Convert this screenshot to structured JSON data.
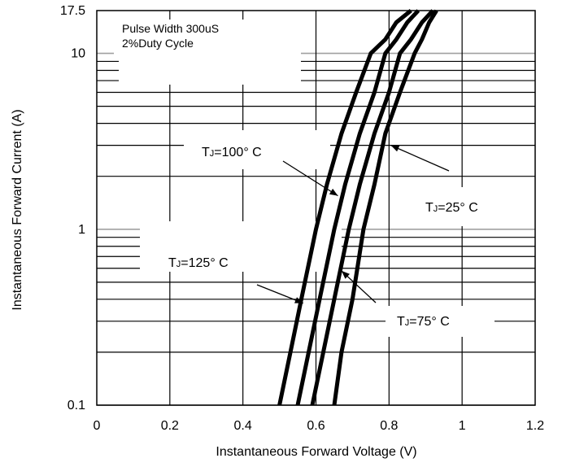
{
  "chart_data": {
    "type": "line",
    "xlabel": "Instantaneous Forward Voltage (V)",
    "ylabel": "Instantaneous Forward Current (A)",
    "x_ticks": [
      "0",
      "0.2",
      "0.4",
      "0.6",
      "0.8",
      "1",
      "1.2"
    ],
    "y_ticks": [
      "0.1",
      "1",
      "10",
      "17.5"
    ],
    "xlim": [
      0,
      1.2
    ],
    "ylim": [
      0.1,
      17.5
    ],
    "y_scale": "log",
    "grid": true,
    "note_lines": [
      "Pulse Width 300uS",
      "2%Duty Cycle"
    ],
    "series": [
      {
        "name": "TJ=125°C",
        "x": [
          0.5,
          0.53,
          0.56,
          0.6,
          0.63,
          0.67,
          0.71,
          0.75,
          0.79,
          0.82,
          0.86
        ],
        "y": [
          0.1,
          0.2,
          0.4,
          1.0,
          1.8,
          3.5,
          6.0,
          10.0,
          12.0,
          15.0,
          17.5
        ]
      },
      {
        "name": "TJ=100°C",
        "x": [
          0.55,
          0.58,
          0.61,
          0.65,
          0.68,
          0.72,
          0.76,
          0.79,
          0.82,
          0.85,
          0.88
        ],
        "y": [
          0.1,
          0.2,
          0.4,
          1.0,
          1.8,
          3.5,
          6.0,
          10.0,
          12.0,
          15.0,
          17.5
        ]
      },
      {
        "name": "TJ=75°C",
        "x": [
          0.59,
          0.62,
          0.65,
          0.69,
          0.72,
          0.76,
          0.8,
          0.83,
          0.86,
          0.89,
          0.92
        ],
        "y": [
          0.1,
          0.2,
          0.4,
          1.0,
          1.8,
          3.5,
          6.0,
          10.0,
          12.0,
          15.0,
          17.5
        ]
      },
      {
        "name": "TJ=25°C",
        "x": [
          0.65,
          0.67,
          0.7,
          0.73,
          0.76,
          0.79,
          0.83,
          0.87,
          0.89,
          0.91,
          0.93
        ],
        "y": [
          0.1,
          0.2,
          0.4,
          1.0,
          1.8,
          3.5,
          6.0,
          10.0,
          12.0,
          15.0,
          17.5
        ]
      }
    ],
    "annotations": [
      {
        "main": "T",
        "sub": "J",
        "rest": "=100° C",
        "series": "TJ=100°C"
      },
      {
        "main": "T",
        "sub": "J",
        "rest": "=25° C",
        "series": "TJ=25°C"
      },
      {
        "main": "T",
        "sub": "J",
        "rest": "=125° C",
        "series": "TJ=125°C"
      },
      {
        "main": "T",
        "sub": "J",
        "rest": "=75° C",
        "series": "TJ=75°C"
      }
    ],
    "colors": {
      "curve": "#000000",
      "grid": "#000000",
      "highlight_grid": "#a0a0a0",
      "background": "#ffffff"
    }
  }
}
